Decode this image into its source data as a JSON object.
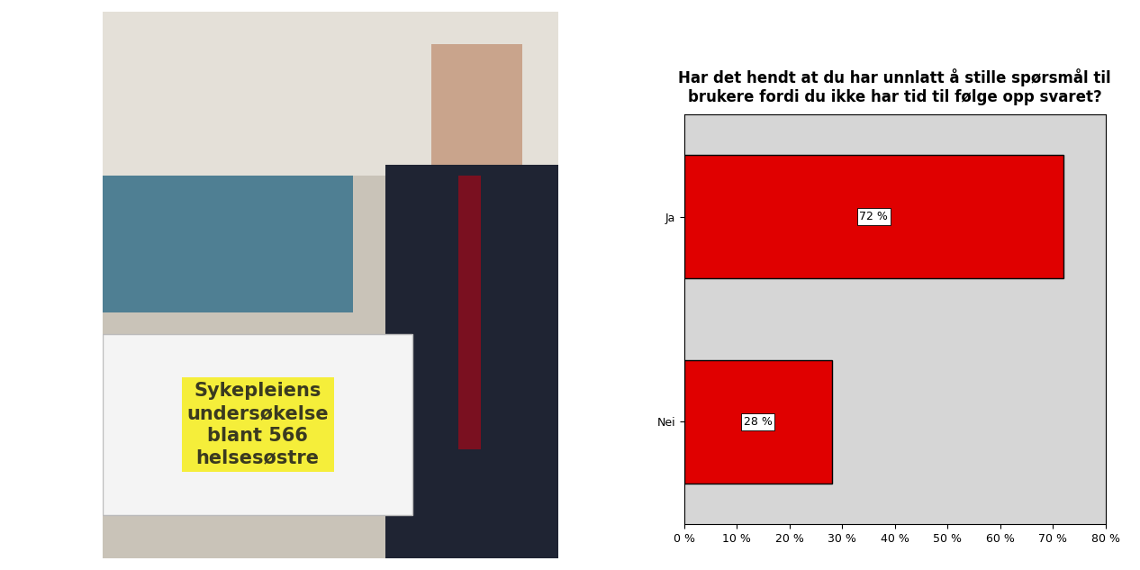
{
  "chart_data": {
    "type": "bar",
    "orientation": "horizontal",
    "title": "Har det hendt at du har unnlatt å stille spørsmål til brukere fordi du ikke har tid til følge opp svaret?",
    "categories": [
      "Ja",
      "Nei"
    ],
    "values": [
      72,
      28
    ],
    "value_labels": [
      "72 %",
      "28 %"
    ],
    "data_labels": true,
    "color": "#e00000",
    "xlim": [
      0,
      80
    ],
    "xticks": [
      {
        "value": 0,
        "label": "0 %"
      },
      {
        "value": 10,
        "label": "10 %"
      },
      {
        "value": 20,
        "label": "20 %"
      },
      {
        "value": 30,
        "label": "30 %"
      },
      {
        "value": 40,
        "label": "40 %"
      },
      {
        "value": 50,
        "label": "50 %"
      },
      {
        "value": 60,
        "label": "60 %"
      },
      {
        "value": 70,
        "label": "70 %"
      },
      {
        "value": 80,
        "label": "80 %"
      }
    ],
    "grid": false
  },
  "photo": {
    "sign_lines": [
      "Sykepleiens",
      "undersøkelse",
      "blant 566",
      "helsesøstre"
    ]
  }
}
